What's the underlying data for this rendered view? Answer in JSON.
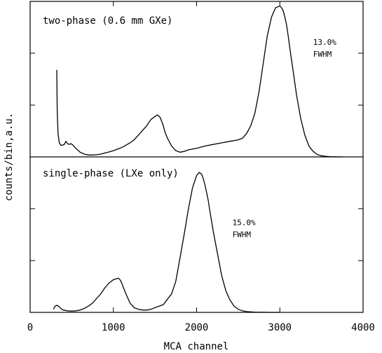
{
  "chart_data": [
    {
      "type": "line",
      "panel_label": "two-phase (0.6 mm GXe)",
      "annotation": {
        "value": "13.0%",
        "label": "FWHM",
        "x": 3400,
        "y_frac": 0.72
      },
      "xlim": [
        0,
        4000
      ],
      "ylim": [
        0,
        1
      ],
      "y_ticks": [
        0.333,
        0.667
      ],
      "series": [
        {
          "x": [
            320,
            325,
            335,
            350,
            370,
            390,
            410,
            430,
            450,
            470,
            490,
            510,
            540,
            570,
            600,
            650,
            700,
            750,
            800,
            850,
            900,
            950,
            1000,
            1050,
            1100,
            1150,
            1200,
            1250,
            1300,
            1350,
            1400,
            1450,
            1500,
            1530,
            1560,
            1580,
            1600,
            1620,
            1650,
            1700,
            1750,
            1800,
            1850,
            1900,
            2000,
            2100,
            2200,
            2300,
            2400,
            2500,
            2550,
            2600,
            2650,
            2700,
            2750,
            2800,
            2850,
            2900,
            2950,
            3000,
            3020,
            3040,
            3060,
            3080,
            3100,
            3130,
            3160,
            3200,
            3250,
            3300,
            3350,
            3400,
            3450,
            3500,
            3550,
            3600,
            3650,
            3700,
            3750
          ],
          "y": [
            0.56,
            0.3,
            0.15,
            0.09,
            0.075,
            0.075,
            0.08,
            0.1,
            0.085,
            0.08,
            0.085,
            0.078,
            0.06,
            0.045,
            0.03,
            0.018,
            0.012,
            0.012,
            0.014,
            0.018,
            0.025,
            0.032,
            0.04,
            0.05,
            0.06,
            0.075,
            0.09,
            0.11,
            0.14,
            0.17,
            0.2,
            0.24,
            0.26,
            0.27,
            0.255,
            0.23,
            0.2,
            0.16,
            0.12,
            0.07,
            0.04,
            0.03,
            0.035,
            0.045,
            0.055,
            0.07,
            0.08,
            0.09,
            0.1,
            0.11,
            0.12,
            0.15,
            0.2,
            0.28,
            0.42,
            0.6,
            0.78,
            0.9,
            0.96,
            0.97,
            0.96,
            0.94,
            0.9,
            0.85,
            0.78,
            0.66,
            0.55,
            0.4,
            0.25,
            0.14,
            0.07,
            0.035,
            0.015,
            0.007,
            0.004,
            0.002,
            0.001,
            0.0,
            0.0
          ]
        }
      ]
    },
    {
      "type": "line",
      "panel_label": "single-phase (LXe only)",
      "annotation": {
        "value": "15.0%",
        "label": "FWHM",
        "x": 2430,
        "y_frac": 0.56
      },
      "xlim": [
        0,
        4000
      ],
      "ylim": [
        0,
        1
      ],
      "y_ticks": [
        0.333,
        0.667
      ],
      "series": [
        {
          "x": [
            280,
            300,
            320,
            340,
            360,
            380,
            400,
            450,
            500,
            550,
            600,
            650,
            700,
            750,
            800,
            850,
            900,
            950,
            1000,
            1030,
            1060,
            1080,
            1100,
            1120,
            1150,
            1200,
            1250,
            1300,
            1350,
            1400,
            1450,
            1500,
            1600,
            1700,
            1750,
            1800,
            1850,
            1900,
            1950,
            2000,
            2030,
            2060,
            2080,
            2100,
            2120,
            2140,
            2160,
            2200,
            2250,
            2300,
            2350,
            2400,
            2450,
            2500,
            2550,
            2600,
            2700,
            2800,
            2900,
            3000
          ],
          "y": [
            0.02,
            0.04,
            0.045,
            0.04,
            0.03,
            0.02,
            0.015,
            0.01,
            0.008,
            0.01,
            0.015,
            0.025,
            0.04,
            0.06,
            0.09,
            0.12,
            0.16,
            0.19,
            0.21,
            0.215,
            0.22,
            0.21,
            0.19,
            0.16,
            0.12,
            0.06,
            0.03,
            0.02,
            0.015,
            0.015,
            0.02,
            0.03,
            0.05,
            0.12,
            0.2,
            0.35,
            0.5,
            0.66,
            0.8,
            0.88,
            0.9,
            0.89,
            0.86,
            0.82,
            0.77,
            0.72,
            0.65,
            0.52,
            0.38,
            0.24,
            0.14,
            0.08,
            0.04,
            0.02,
            0.01,
            0.005,
            0.002,
            0.001,
            0.0,
            0.0
          ]
        }
      ]
    }
  ],
  "axes": {
    "xlabel": "MCA channel",
    "ylabel": "counts/bin,a.u.",
    "x_ticks": [
      0,
      1000,
      2000,
      3000,
      4000
    ],
    "x_tick_labels": [
      "0",
      "1000",
      "2000",
      "3000",
      "4000"
    ]
  }
}
